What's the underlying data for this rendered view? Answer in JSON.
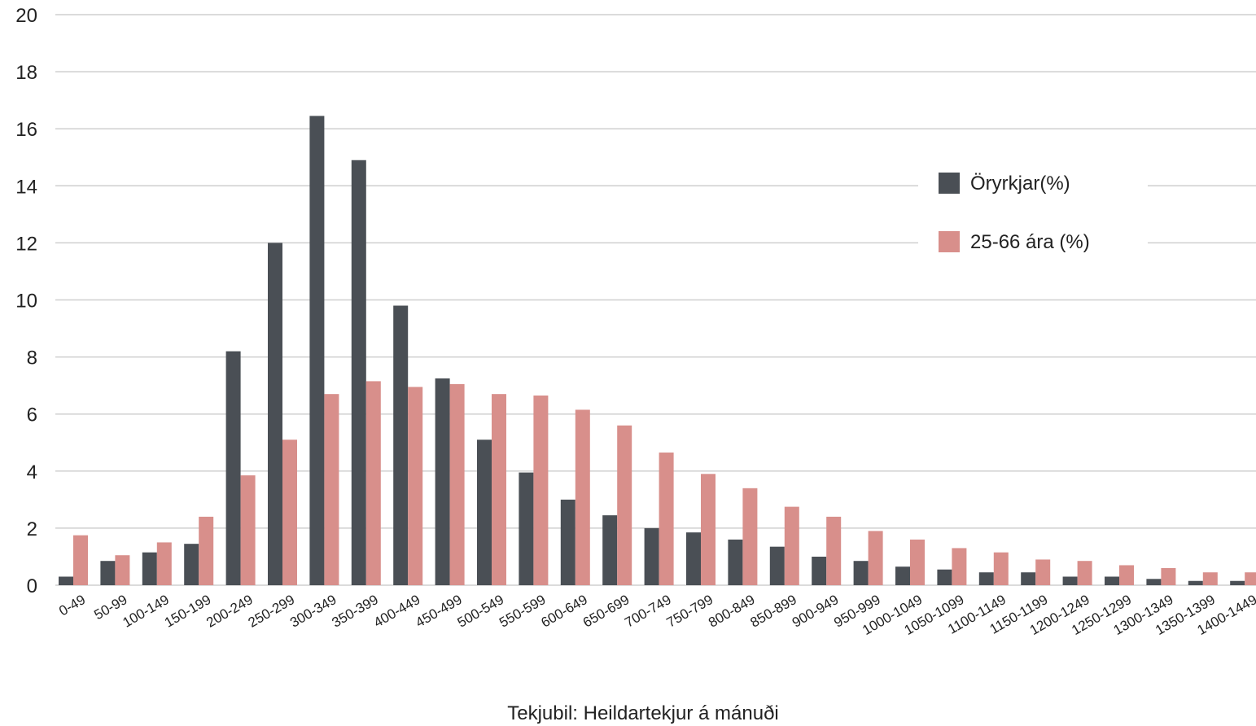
{
  "chart_data": {
    "type": "bar",
    "title": "",
    "xlabel": "Tekjubil: Heildartekjur á mánuði",
    "ylabel": "",
    "ylim": [
      0,
      20
    ],
    "yticks": [
      "0",
      "2",
      "4",
      "6",
      "8",
      "10",
      "12",
      "14",
      "16",
      "18",
      "20"
    ],
    "grid": true,
    "legend_position": "top-right",
    "categories": [
      "0-49",
      "50-99",
      "100-149",
      "150-199",
      "200-249",
      "250-299",
      "300-349",
      "350-399",
      "400-449",
      "450-499",
      "500-549",
      "550-599",
      "600-649",
      "650-699",
      "700-749",
      "750-799",
      "800-849",
      "850-899",
      "900-949",
      "950-999",
      "1000-1049",
      "1050-1099",
      "1100-1149",
      "1150-1199",
      "1200-1249",
      "1250-1299",
      "1300-1349",
      "1350-1399",
      "1400-1449"
    ],
    "series": [
      {
        "name": "Öryrkjar(%)",
        "color": "#4a4f55",
        "values": [
          0.3,
          0.85,
          1.15,
          1.45,
          8.2,
          12.0,
          16.45,
          14.9,
          9.8,
          7.25,
          5.1,
          3.95,
          3.0,
          2.45,
          2.0,
          1.85,
          1.6,
          1.35,
          1.0,
          0.85,
          0.65,
          0.55,
          0.45,
          0.45,
          0.3,
          0.3,
          0.22,
          0.15,
          0.15
        ]
      },
      {
        "name": "25-66 ára (%)",
        "color": "#d88f8b",
        "values": [
          1.75,
          1.05,
          1.5,
          2.4,
          3.85,
          5.1,
          6.7,
          7.15,
          6.95,
          7.05,
          6.7,
          6.65,
          6.15,
          5.6,
          4.65,
          3.9,
          3.4,
          2.75,
          2.4,
          1.9,
          1.6,
          1.3,
          1.15,
          0.9,
          0.85,
          0.7,
          0.6,
          0.45,
          0.45
        ]
      }
    ]
  }
}
